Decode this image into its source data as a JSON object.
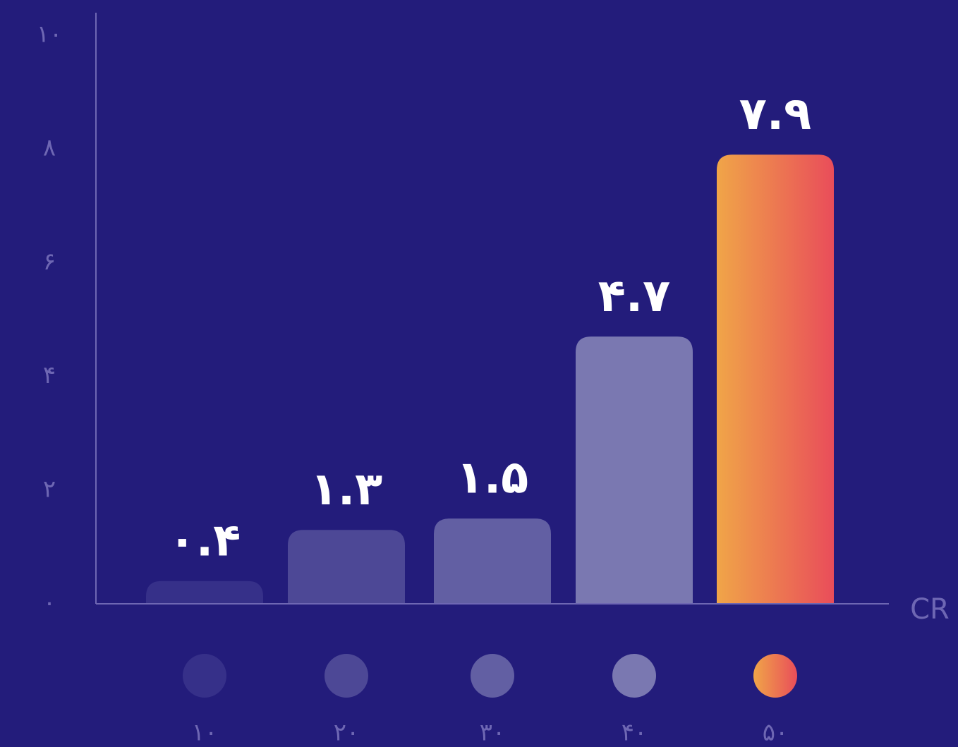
{
  "chart_data": {
    "type": "bar",
    "xlabel": "CR",
    "ylabel": "",
    "ylim": [
      0,
      10
    ],
    "yticks": [
      {
        "value": 0,
        "label": "۰"
      },
      {
        "value": 2,
        "label": "۲"
      },
      {
        "value": 4,
        "label": "۴"
      },
      {
        "value": 6,
        "label": "۶"
      },
      {
        "value": 8,
        "label": "۸"
      },
      {
        "value": 10,
        "label": "۱۰"
      }
    ],
    "grid": false,
    "legend": "bottom",
    "bars": [
      {
        "category": "۱۰",
        "value": 0.4,
        "label": "۰.۴",
        "color": "#363089",
        "highlight": false
      },
      {
        "category": "۲۰",
        "value": 1.3,
        "label": "۱.۳",
        "color": "#4d4896",
        "highlight": false
      },
      {
        "category": "۳۰",
        "value": 1.5,
        "label": "۱.۵",
        "color": "#625fa3",
        "highlight": false
      },
      {
        "category": "۴۰",
        "value": 4.7,
        "label": "۴.۷",
        "color": "#7a78b1",
        "highlight": false
      },
      {
        "category": "۵۰",
        "value": 7.9,
        "label": "۷.۹",
        "color": "#e94d5a",
        "highlight": true
      }
    ],
    "highlight_gradient": [
      "#f0a548",
      "#e94d5a"
    ],
    "colors": {
      "background": "#231c7b",
      "axis": "#6e67b3",
      "text": "#ffffff"
    }
  }
}
